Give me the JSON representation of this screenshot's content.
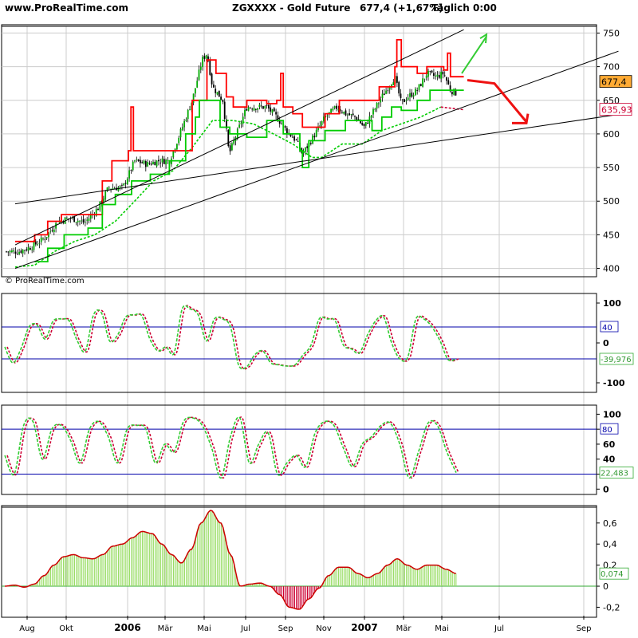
{
  "header": {
    "site": "www.ProRealTime.com",
    "instrument": "ZGXXXX - Gold Future",
    "quote": "677,4 (+1,67%)",
    "period_time": "Täglich  0:00"
  },
  "watermark": "© ProRealTime.com",
  "colors": {
    "candle_up": "#00aa00",
    "candle_down": "#000000",
    "upper_stop": "#ff0000",
    "lower_stop": "#00cc00",
    "ma_lower": "#00cc00",
    "ma_red": "#cc0033",
    "osc_green": "#33cc33",
    "osc_red": "#cc0033",
    "hist_pos": "#99dd66",
    "hist_neg": "#cc0033",
    "hist_line": "#cc0000",
    "level_line": "#0000aa",
    "arrow_up": "#33cc33",
    "arrow_down": "#ee1111",
    "last_price_box": "#ffaa33"
  },
  "chart_data": [
    {
      "id": "price",
      "type": "candlestick",
      "x_tick_labels": [
        "Aug",
        "Okt",
        "2006",
        "Mär",
        "Mai",
        "Jul",
        "Sep",
        "Nov",
        "2007",
        "Mär",
        "Mai",
        "Jul",
        "Sep"
      ],
      "y_tick_labels": [
        "400",
        "450",
        "500",
        "550",
        "600",
        "650",
        "700",
        "750"
      ],
      "ylim": [
        390,
        760
      ],
      "grid": true,
      "last_price_label": "677,4",
      "lower_stop_label": "635,93",
      "close_trend": [
        {
          "date": "Jul-25",
          "close": 425
        },
        {
          "date": "Aug-15",
          "close": 432
        },
        {
          "date": "Sep-05",
          "close": 445
        },
        {
          "date": "Sep-26",
          "close": 470
        },
        {
          "date": "Okt-15",
          "close": 475
        },
        {
          "date": "Nov-05",
          "close": 468
        },
        {
          "date": "Nov-25",
          "close": 490
        },
        {
          "date": "Dez-10",
          "close": 520
        },
        {
          "date": "Dez-31",
          "close": 520
        },
        {
          "date": "Jan-20",
          "close": 560
        },
        {
          "date": "Feb-10",
          "close": 555
        },
        {
          "date": "Feb-28",
          "close": 560
        },
        {
          "date": "Mär-15",
          "close": 560
        },
        {
          "date": "Apr-01",
          "close": 600
        },
        {
          "date": "Apr-20",
          "close": 650
        },
        {
          "date": "Mai-05",
          "close": 710
        },
        {
          "date": "Mai-12",
          "close": 720
        },
        {
          "date": "Mai-20",
          "close": 670
        },
        {
          "date": "Jun-05",
          "close": 650
        },
        {
          "date": "Jun-14",
          "close": 570
        },
        {
          "date": "Jun-25",
          "close": 600
        },
        {
          "date": "Jul-10",
          "close": 640
        },
        {
          "date": "Jul-25",
          "close": 640
        },
        {
          "date": "Aug-10",
          "close": 640
        },
        {
          "date": "Aug-25",
          "close": 625
        },
        {
          "date": "Sep-10",
          "close": 605
        },
        {
          "date": "Sep-25",
          "close": 590
        },
        {
          "date": "Okt-05",
          "close": 570
        },
        {
          "date": "Okt-15",
          "close": 585
        },
        {
          "date": "Okt-25",
          "close": 600
        },
        {
          "date": "Nov-10",
          "close": 625
        },
        {
          "date": "Nov-28",
          "close": 640
        },
        {
          "date": "Dez-10",
          "close": 630
        },
        {
          "date": "Dez-25",
          "close": 625
        },
        {
          "date": "Jan-08",
          "close": 610
        },
        {
          "date": "Jan-20",
          "close": 630
        },
        {
          "date": "Feb-05",
          "close": 655
        },
        {
          "date": "Feb-25",
          "close": 685
        },
        {
          "date": "Mär-05",
          "close": 645
        },
        {
          "date": "Mär-15",
          "close": 655
        },
        {
          "date": "Mär-30",
          "close": 665
        },
        {
          "date": "Apr-15",
          "close": 690
        },
        {
          "date": "Apr-30",
          "close": 685
        },
        {
          "date": "Mai-08",
          "close": 690
        },
        {
          "date": "Mai-15",
          "close": 665
        },
        {
          "date": "Mai-22",
          "close": 660
        },
        {
          "date": "Mai-29",
          "close": 677
        }
      ],
      "upper_stop": [
        {
          "date": "Jul-20",
          "value": 440
        },
        {
          "date": "Aug-10",
          "value": 440
        },
        {
          "date": "Aug-20",
          "value": 450
        },
        {
          "date": "Sep-10",
          "value": 470
        },
        {
          "date": "Okt-01",
          "value": 480
        },
        {
          "date": "Nov-01",
          "value": 480
        },
        {
          "date": "Dez-01",
          "value": 530
        },
        {
          "date": "Dez-15",
          "value": 560
        },
        {
          "date": "Jan-10",
          "value": 575
        },
        {
          "date": "Jan-14",
          "value": 640
        },
        {
          "date": "Jan-18",
          "value": 575
        },
        {
          "date": "Mär-05",
          "value": 575
        },
        {
          "date": "Apr-20",
          "value": 650
        },
        {
          "date": "Mai-12",
          "value": 710
        },
        {
          "date": "Mai-25",
          "value": 690
        },
        {
          "date": "Jun-10",
          "value": 655
        },
        {
          "date": "Jun-20",
          "value": 640
        },
        {
          "date": "Jul-10",
          "value": 650
        },
        {
          "date": "Aug-10",
          "value": 645
        },
        {
          "date": "Aug-25",
          "value": 650
        },
        {
          "date": "Sep-01",
          "value": 690
        },
        {
          "date": "Sep-05",
          "value": 640
        },
        {
          "date": "Sep-20",
          "value": 630
        },
        {
          "date": "Okt-05",
          "value": 610
        },
        {
          "date": "Okt-20",
          "value": 610
        },
        {
          "date": "Nov-10",
          "value": 630
        },
        {
          "date": "Dez-01",
          "value": 650
        },
        {
          "date": "Jan-10",
          "value": 650
        },
        {
          "date": "Feb-01",
          "value": 670
        },
        {
          "date": "Feb-25",
          "value": 700
        },
        {
          "date": "Feb-28",
          "value": 740
        },
        {
          "date": "Mär-05",
          "value": 700
        },
        {
          "date": "Mär-30",
          "value": 690
        },
        {
          "date": "Apr-15",
          "value": 700
        },
        {
          "date": "Mai-08",
          "value": 695
        },
        {
          "date": "Mai-12",
          "value": 720
        },
        {
          "date": "Mai-15",
          "value": 685
        },
        {
          "date": "Mai-29",
          "value": 685
        }
      ],
      "lower_stop": [
        {
          "date": "Aug-20",
          "value": 410
        },
        {
          "date": "Sep-10",
          "value": 430
        },
        {
          "date": "Okt-05",
          "value": 450
        },
        {
          "date": "Nov-10",
          "value": 460
        },
        {
          "date": "Dez-01",
          "value": 495
        },
        {
          "date": "Dez-20",
          "value": 510
        },
        {
          "date": "Jan-15",
          "value": 530
        },
        {
          "date": "Feb-15",
          "value": 540
        },
        {
          "date": "Mär-15",
          "value": 560
        },
        {
          "date": "Apr-10",
          "value": 600
        },
        {
          "date": "Apr-25",
          "value": 625
        },
        {
          "date": "Mai-01",
          "value": 650
        },
        {
          "date": "Jun-01",
          "value": 610
        },
        {
          "date": "Jun-15",
          "value": 600
        },
        {
          "date": "Jul-10",
          "value": 595
        },
        {
          "date": "Aug-10",
          "value": 620
        },
        {
          "date": "Sep-05",
          "value": 600
        },
        {
          "date": "Okt-01",
          "value": 575
        },
        {
          "date": "Okt-05",
          "value": 550
        },
        {
          "date": "Okt-15",
          "value": 590
        },
        {
          "date": "Nov-10",
          "value": 605
        },
        {
          "date": "Dez-10",
          "value": 620
        },
        {
          "date": "Jan-20",
          "value": 605
        },
        {
          "date": "Feb-05",
          "value": 625
        },
        {
          "date": "Feb-20",
          "value": 640
        },
        {
          "date": "Mär-05",
          "value": 635
        },
        {
          "date": "Mär-30",
          "value": 650
        },
        {
          "date": "Apr-20",
          "value": 665
        },
        {
          "date": "Mai-29",
          "value": 665
        }
      ],
      "ma_lower": [
        {
          "date": "Jul-20",
          "value": 402
        },
        {
          "date": "Aug-20",
          "value": 405
        },
        {
          "date": "Sep-20",
          "value": 425
        },
        {
          "date": "Okt-20",
          "value": 440
        },
        {
          "date": "Nov-20",
          "value": 450
        },
        {
          "date": "Dez-20",
          "value": 470
        },
        {
          "date": "Jan-20",
          "value": 500
        },
        {
          "date": "Feb-20",
          "value": 530
        },
        {
          "date": "Mär-20",
          "value": 545
        },
        {
          "date": "Apr-20",
          "value": 580
        },
        {
          "date": "Mai-20",
          "value": 620
        },
        {
          "date": "Jun-20",
          "value": 620
        },
        {
          "date": "Jul-20",
          "value": 615
        },
        {
          "date": "Aug-20",
          "value": 600
        },
        {
          "date": "Sep-20",
          "value": 585
        },
        {
          "date": "Okt-20",
          "value": 565
        },
        {
          "date": "Nov-05",
          "value": 565
        },
        {
          "date": "Dez-05",
          "value": 585
        },
        {
          "date": "Jan-05",
          "value": 585
        },
        {
          "date": "Feb-05",
          "value": 605
        },
        {
          "date": "Mär-05",
          "value": 615
        },
        {
          "date": "Apr-05",
          "value": 625
        },
        {
          "date": "Mai-05",
          "value": 640
        },
        {
          "date": "Mai-29",
          "value": 636
        }
      ],
      "trendlines": [
        {
          "from": {
            "date": "Jul-20",
            "value": 435
          },
          "to": {
            "date": "Mai-29-07",
            "value": 755
          }
        },
        {
          "from": {
            "date": "Jul-20",
            "value": 400
          },
          "to": {
            "date": "Sep-29-07",
            "value": 723
          }
        },
        {
          "from": {
            "date": "Jul-20",
            "value": 496
          },
          "to": {
            "date": "Sep-29-07",
            "value": 629
          }
        }
      ]
    },
    {
      "id": "oscillator1",
      "type": "line",
      "y_tick_labels": [
        "100",
        "0",
        "-100"
      ],
      "ylim": [
        -120,
        120
      ],
      "levels": [
        40,
        -40
      ],
      "level_labels": [
        "40"
      ],
      "last_value_label": "-39,976",
      "values": [
        -10,
        -50,
        -15,
        40,
        45,
        10,
        55,
        60,
        55,
        5,
        -20,
        70,
        75,
        5,
        20,
        65,
        70,
        68,
        10,
        -20,
        -10,
        -25,
        85,
        85,
        70,
        5,
        60,
        60,
        40,
        -55,
        -60,
        -30,
        -20,
        -50,
        -55,
        -58,
        -55,
        -30,
        -5,
        60,
        60,
        55,
        -5,
        -15,
        -25,
        20,
        55,
        65,
        0,
        -40,
        -35,
        60,
        60,
        40,
        5,
        -42,
        -40
      ]
    },
    {
      "id": "oscillator2",
      "type": "line",
      "y_tick_labels": [
        "100",
        "80",
        "60",
        "40",
        "20",
        "0"
      ],
      "ylim": [
        -5,
        110
      ],
      "levels": [
        80,
        20
      ],
      "level_labels": [
        "80"
      ],
      "last_value_label": "22,483",
      "values": [
        45,
        20,
        85,
        90,
        40,
        80,
        85,
        65,
        35,
        80,
        90,
        70,
        35,
        80,
        85,
        80,
        35,
        60,
        50,
        90,
        95,
        85,
        55,
        15,
        70,
        95,
        35,
        60,
        75,
        20,
        35,
        45,
        30,
        75,
        90,
        85,
        55,
        30,
        60,
        70,
        85,
        88,
        60,
        15,
        50,
        88,
        85,
        50,
        22
      ]
    },
    {
      "id": "histogram",
      "type": "area",
      "y_tick_labels": [
        "0,6",
        "0,4",
        "0,2",
        "0",
        "-0,2"
      ],
      "ylim": [
        -0.28,
        0.75
      ],
      "last_value_label": "0,074",
      "values": [
        0,
        0.01,
        -0.01,
        0.02,
        0.1,
        0.2,
        0.28,
        0.3,
        0.27,
        0.26,
        0.3,
        0.38,
        0.4,
        0.46,
        0.52,
        0.5,
        0.4,
        0.3,
        0.22,
        0.35,
        0.6,
        0.72,
        0.6,
        0.3,
        0,
        0.02,
        0.03,
        0,
        -0.08,
        -0.2,
        -0.22,
        -0.12,
        -0.02,
        0.1,
        0.18,
        0.18,
        0.12,
        0.08,
        0.12,
        0.2,
        0.26,
        0.2,
        0.16,
        0.2,
        0.2,
        0.16,
        0.12
      ]
    }
  ]
}
